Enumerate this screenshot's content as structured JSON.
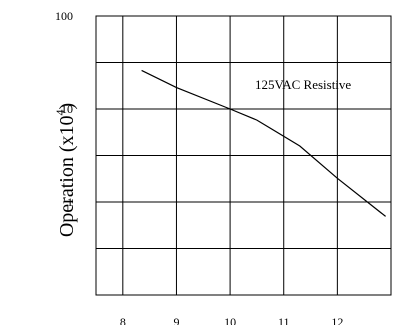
{
  "chart_data": {
    "type": "line",
    "x_ticks": [
      "8",
      "9",
      "10",
      "11",
      "12"
    ],
    "y_ticks": [
      "1",
      "10",
      "100"
    ],
    "xlim": [
      7.5,
      13
    ],
    "ylim": [
      0.1,
      100
    ],
    "y_scale": "log",
    "grid": true,
    "ylabel": {
      "main": "Operation (x10",
      "sup": "4",
      "close": ")"
    },
    "series": [
      {
        "name": "125VAC Resistive",
        "x": [
          8.35,
          9.0,
          10.0,
          10.5,
          11.3,
          12.0,
          12.9
        ],
        "y": [
          26,
          17,
          10,
          7.6,
          4,
          1.8,
          0.7
        ]
      }
    ]
  }
}
